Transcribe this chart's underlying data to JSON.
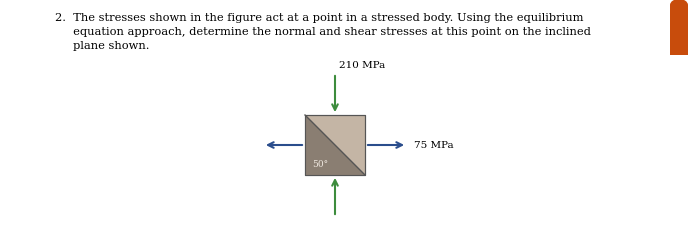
{
  "text_line1": "2.  The stresses shown in the figure act at a point in a stressed body. Using the equilibrium",
  "text_line2": "     equation approach, determine the normal and shear stresses at this point on the inclined",
  "text_line3": "     plane shown.",
  "stress_top": "210 MPa",
  "stress_right": "75 MPa",
  "angle_label": "50°",
  "box_color_light": "#c4b5a5",
  "box_color_dark": "#8a7e72",
  "arrow_color_green": "#3d8c3d",
  "arrow_color_blue": "#2a4d8c",
  "fig_width": 6.88,
  "fig_height": 2.27,
  "background_color": "#ffffff",
  "text_color": "#000000",
  "orange_tab_color": "#c84c0c",
  "font_size_text": 8.2,
  "font_size_label": 7.5,
  "font_size_angle": 6.5
}
